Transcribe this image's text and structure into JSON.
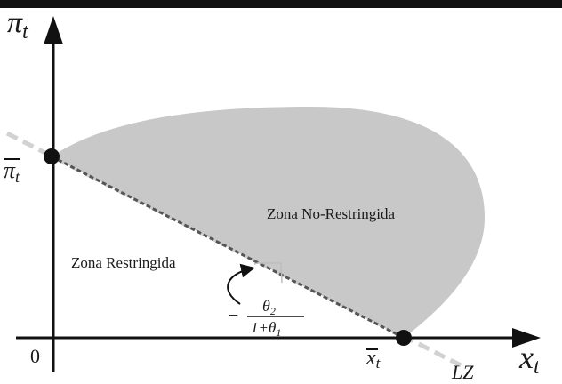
{
  "axes": {
    "y_label_symbol": "π",
    "y_label_sub": "t",
    "x_label_symbol": "x",
    "x_label_sub": "t",
    "origin_label": "0"
  },
  "points": {
    "pi_bar_symbol": "π",
    "pi_bar_sub": "t",
    "x_bar_symbol": "x",
    "x_bar_sub": "t"
  },
  "regions": {
    "unrestricted": "Zona No-Restringida",
    "restricted": "Zona Restringida"
  },
  "slope": {
    "sign": "−",
    "numerator_symbol": "θ",
    "numerator_sub": "2",
    "denominator_text": "1+θ",
    "denominator_sub": "1"
  },
  "line_label": "LZ",
  "colors": {
    "region_fill": "#c8c8c8",
    "axis": "#111111",
    "dashed_line": "#555555",
    "extension_line": "#d2d2d2"
  }
}
